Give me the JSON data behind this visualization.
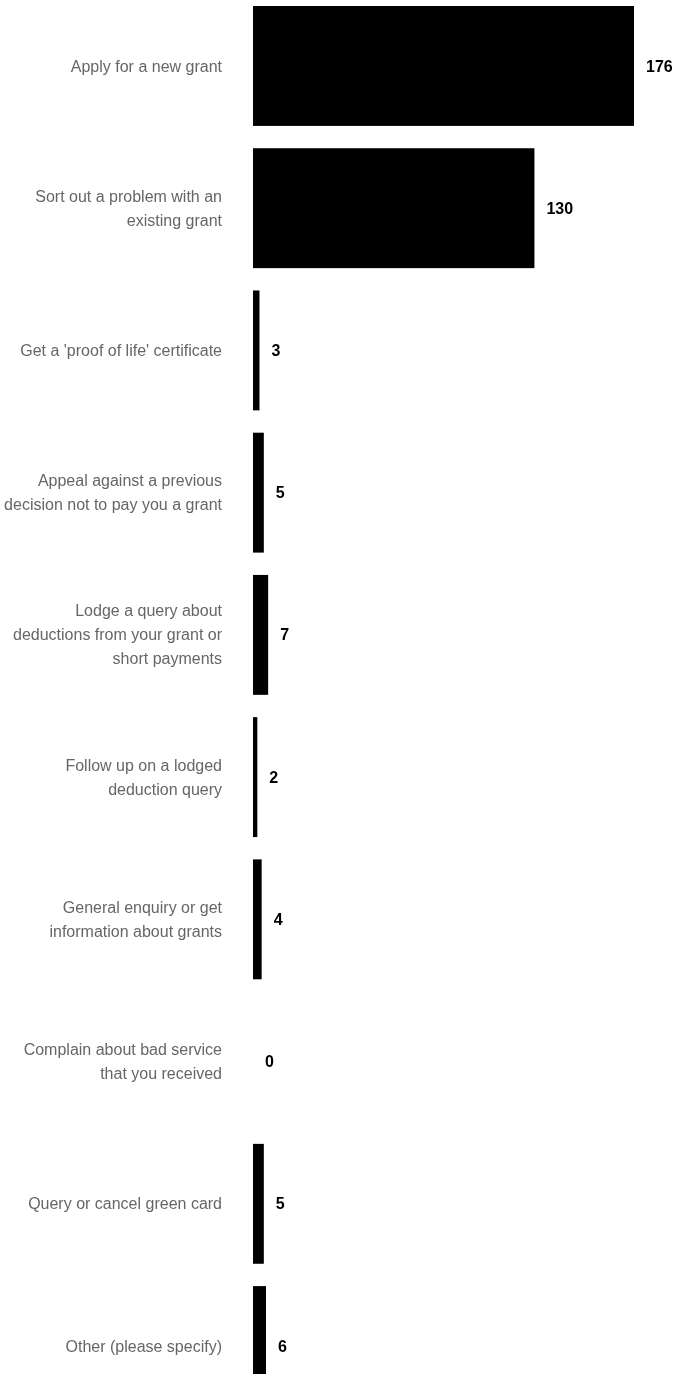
{
  "chart_data": {
    "type": "bar",
    "orientation": "horizontal",
    "categories": [
      "Apply for a new grant",
      "Sort out a problem with an existing grant",
      "Get a 'proof of life' certificate",
      "Appeal against a previous decision not to pay you a grant",
      "Lodge a query about deductions from your grant or short payments",
      "Follow up on a lodged deduction query",
      "General enquiry or get information about grants",
      "Complain about bad service that you received",
      "Query or cancel green card",
      "Other (please specify)"
    ],
    "values": [
      176,
      130,
      3,
      5,
      7,
      2,
      4,
      0,
      5,
      6
    ],
    "color": "#000000",
    "data_labels": true
  }
}
